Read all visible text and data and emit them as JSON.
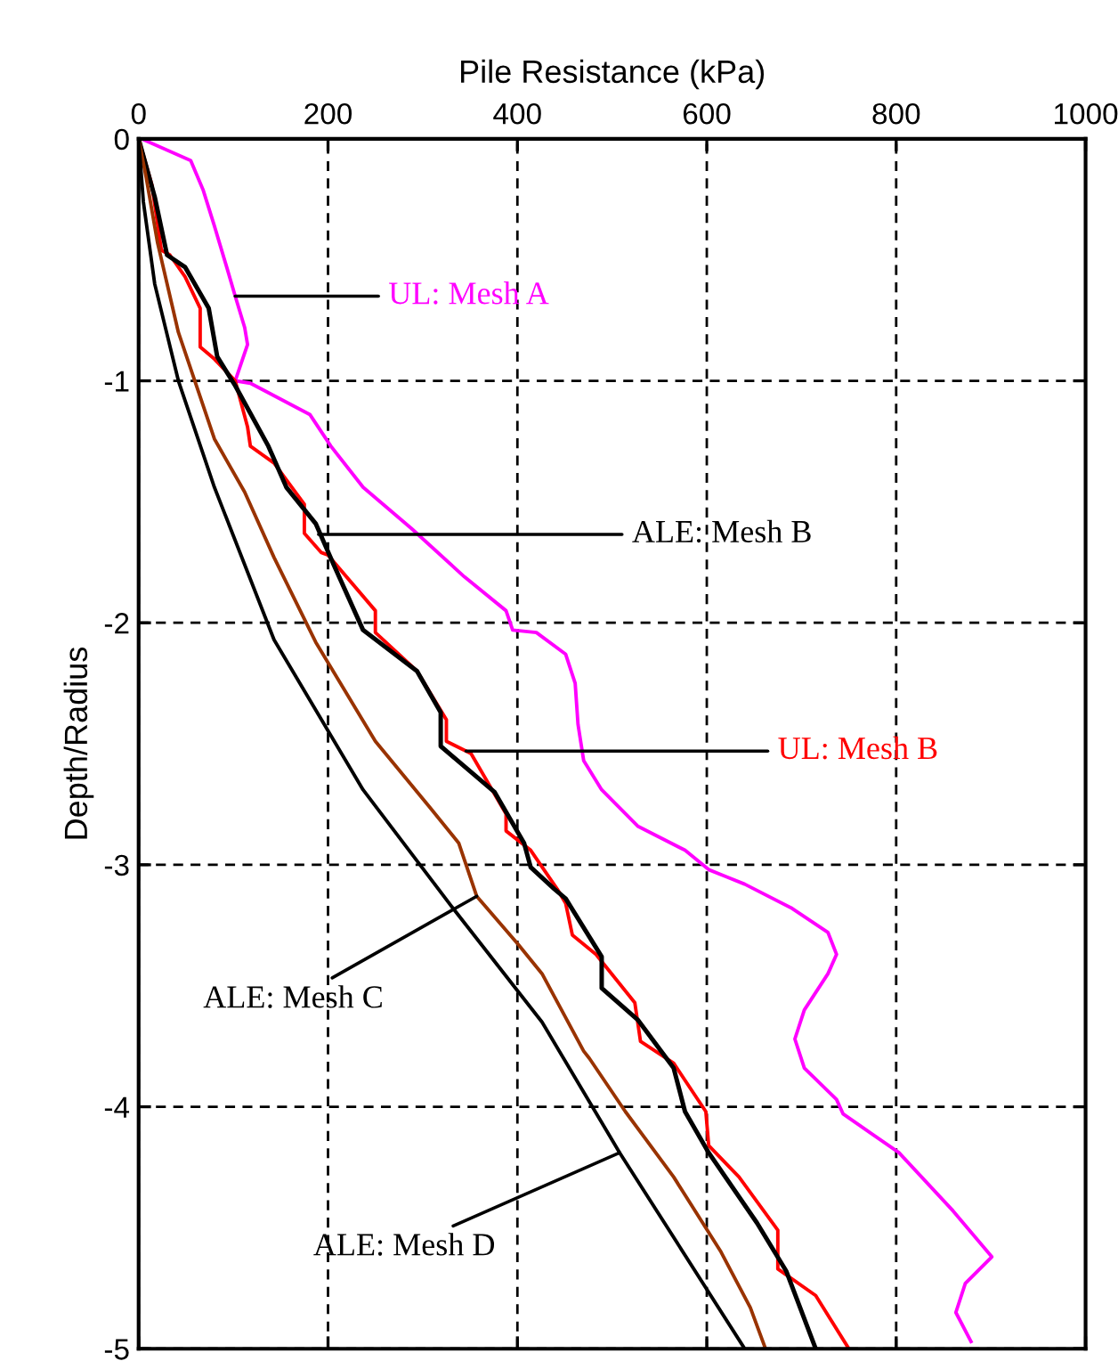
{
  "chart_data": {
    "type": "line",
    "xlabel": "Pile Resistance (kPa)",
    "ylabel": "Depth/Radius",
    "xlim": [
      0,
      1000
    ],
    "xticks": [
      0,
      200,
      400,
      600,
      800,
      1000
    ],
    "ylim": [
      -5,
      0
    ],
    "yticks": [
      -5,
      -4,
      -3,
      -2,
      -1,
      0
    ],
    "annotations": [
      {
        "text": "ALE: Mesh B",
        "x": 190,
        "y": -1.635
      },
      {
        "text": "ALE: Mesh C",
        "x": 357,
        "y": -3.13
      },
      {
        "text": "ALE: Mesh D",
        "x": 508,
        "y": -4.19
      }
    ],
    "grid": true,
    "legend": false,
    "marker": "none",
    "line_style": "solid",
    "series": [
      {
        "name": "UL: Mesh A",
        "color": "#ff00ff",
        "x": [
          3,
          55,
          68,
          80,
          93,
          102,
          112,
          115,
          102,
          118,
          181,
          203,
          237,
          288,
          344,
          388,
          395,
          420,
          451,
          461,
          464,
          470,
          489,
          527,
          577,
          602,
          621,
          640,
          690,
          728,
          737,
          728,
          703,
          693,
          703,
          737,
          744,
          803,
          860,
          901,
          873,
          863,
          879
        ],
        "values": [
          0,
          -0.09,
          -0.21,
          -0.36,
          -0.53,
          -0.65,
          -0.78,
          -0.85,
          -1.0,
          -1.01,
          -1.14,
          -1.27,
          -1.44,
          -1.61,
          -1.81,
          -1.95,
          -2.03,
          -2.04,
          -2.13,
          -2.25,
          -2.42,
          -2.57,
          -2.69,
          -2.84,
          -2.94,
          -3.02,
          -3.05,
          -3.08,
          -3.18,
          -3.28,
          -3.37,
          -3.45,
          -3.6,
          -3.72,
          -3.84,
          -3.97,
          -4.03,
          -4.19,
          -4.43,
          -4.62,
          -4.73,
          -4.85,
          -4.97
        ]
      },
      {
        "name": "UL: Mesh B",
        "color": "#ff0000",
        "x": [
          0,
          14,
          24,
          33,
          49,
          65,
          65,
          80,
          102,
          115,
          118,
          143,
          175,
          175,
          193,
          200,
          250,
          250,
          294,
          325,
          325,
          351,
          388,
          388,
          414,
          442,
          451,
          458,
          483,
          524,
          530,
          565,
          599,
          602,
          634,
          675,
          675,
          715,
          750
        ],
        "values": [
          0,
          -0.19,
          -0.46,
          -0.48,
          -0.57,
          -0.7,
          -0.86,
          -0.91,
          -1.0,
          -1.19,
          -1.27,
          -1.34,
          -1.51,
          -1.63,
          -1.71,
          -1.72,
          -1.95,
          -2.04,
          -2.2,
          -2.4,
          -2.49,
          -2.54,
          -2.79,
          -2.86,
          -2.94,
          -3.1,
          -3.16,
          -3.29,
          -3.37,
          -3.57,
          -3.73,
          -3.82,
          -4.02,
          -4.16,
          -4.29,
          -4.51,
          -4.67,
          -4.78,
          -5.0
        ]
      },
      {
        "color": "#000000",
        "x": [
          0,
          17,
          30,
          49,
          74,
          83,
          102,
          137,
          156,
          187,
          206,
          237,
          294,
          319,
          319,
          376,
          407,
          414,
          439,
          451,
          489,
          489,
          527,
          565,
          577,
          602,
          653,
          684,
          715
        ],
        "values": [
          0,
          -0.24,
          -0.48,
          -0.53,
          -0.7,
          -0.9,
          -1.02,
          -1.27,
          -1.44,
          -1.59,
          -1.76,
          -2.03,
          -2.2,
          -2.37,
          -2.51,
          -2.7,
          -2.91,
          -3.01,
          -3.1,
          -3.14,
          -3.38,
          -3.51,
          -3.64,
          -3.84,
          -4.02,
          -4.19,
          -4.48,
          -4.68,
          -5.0
        ]
      },
      {
        "color": "#993300",
        "x": [
          0,
          8,
          20,
          42,
          61,
          80,
          112,
          143,
          187,
          250,
          307,
          338,
          357,
          401,
          426,
          470,
          476,
          514,
          565,
          615,
          646,
          662
        ],
        "values": [
          0,
          -0.16,
          -0.43,
          -0.8,
          -1.02,
          -1.24,
          -1.46,
          -1.73,
          -2.08,
          -2.49,
          -2.76,
          -2.91,
          -3.13,
          -3.33,
          -3.45,
          -3.77,
          -3.8,
          -4.02,
          -4.29,
          -4.6,
          -4.83,
          -5.0
        ]
      },
      {
        "color": "#000000",
        "x": [
          0,
          5,
          17,
          42,
          80,
          143,
          237,
          332,
          426,
          508,
          640
        ],
        "values": [
          0,
          -0.26,
          -0.6,
          -1.0,
          -1.44,
          -2.07,
          -2.69,
          -3.18,
          -3.65,
          -4.19,
          -5.0
        ]
      }
    ]
  }
}
